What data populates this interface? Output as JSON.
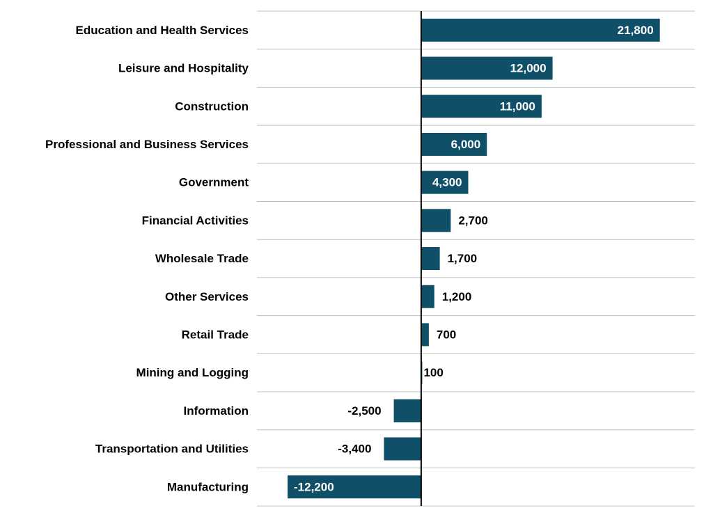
{
  "colors": {
    "bar": "#0f5068",
    "gridline": "#bfbfbf",
    "axis": "#000000",
    "label_inside": "#ffffff",
    "label_outside": "#000000"
  },
  "chart_data": {
    "type": "bar",
    "orientation": "horizontal",
    "title": "",
    "xlabel": "",
    "ylabel": "",
    "grid": true,
    "legend": "none",
    "xlim": [
      -15000,
      25000
    ],
    "categories": [
      "Education and Health Services",
      "Leisure and Hospitality",
      "Construction",
      "Professional and Business Services",
      "Government",
      "Financial Activities",
      "Wholesale Trade",
      "Other Services",
      "Retail Trade",
      "Mining and Logging",
      "Information",
      "Transportation and Utilities",
      "Manufacturing"
    ],
    "values": [
      21800,
      12000,
      11000,
      6000,
      4300,
      2700,
      1700,
      1200,
      700,
      100,
      -2500,
      -3400,
      -12200
    ],
    "data_labels": [
      "21,800",
      "12,000",
      "11,000",
      "6,000",
      "4,300",
      "2,700",
      "1,700",
      "1,200",
      "700",
      "100",
      "-2,500",
      "-3,400",
      "-12,200"
    ]
  }
}
